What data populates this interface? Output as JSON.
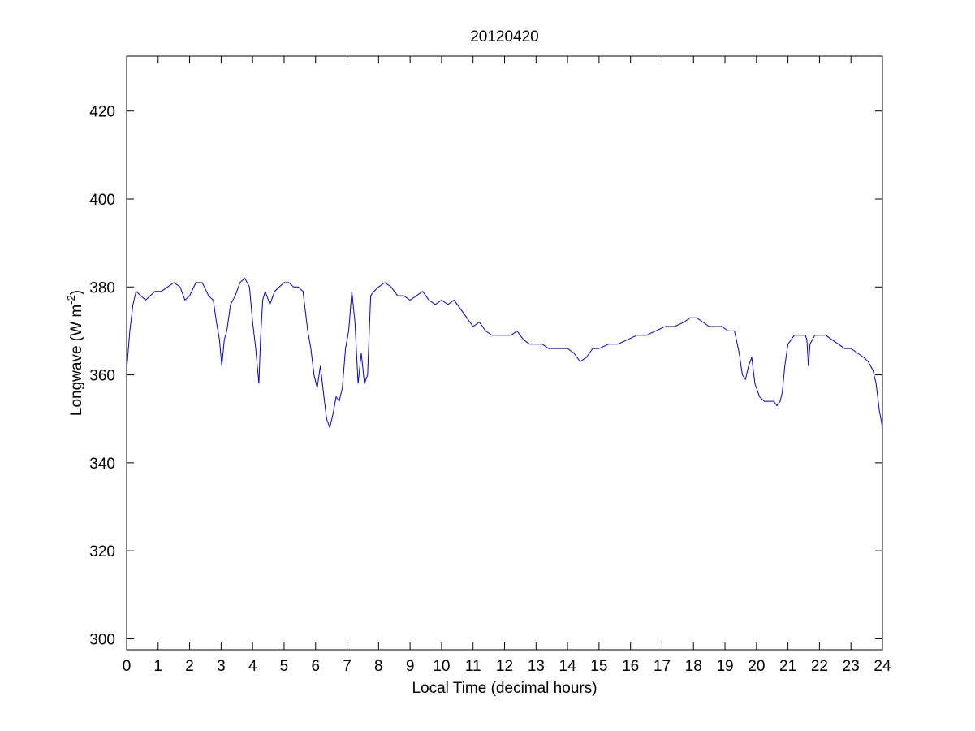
{
  "colors": {
    "series": "#0000cc",
    "axis": "#000000",
    "background": "#ffffff"
  },
  "chart_data": {
    "type": "line",
    "title": "20120420",
    "xlabel": "Local Time (decimal hours)",
    "ylabel": {
      "main": "Longwave (W m",
      "sup": "-2",
      "close": ")"
    },
    "xlim": [
      0,
      24
    ],
    "ylim": [
      297.5,
      432.5
    ],
    "x_ticks": [
      0,
      1,
      2,
      3,
      4,
      5,
      6,
      7,
      8,
      9,
      10,
      11,
      12,
      13,
      14,
      15,
      16,
      17,
      18,
      19,
      20,
      21,
      22,
      23,
      24
    ],
    "y_ticks": [
      300,
      320,
      340,
      360,
      380,
      400,
      420
    ],
    "grid": false,
    "legend": "none",
    "series": [
      {
        "x": [
          0.0,
          0.1,
          0.2,
          0.3,
          0.45,
          0.6,
          0.75,
          0.9,
          1.1,
          1.3,
          1.5,
          1.7,
          1.85,
          2.0,
          2.2,
          2.4,
          2.6,
          2.75,
          2.85,
          2.95,
          3.02,
          3.1,
          3.18,
          3.3,
          3.45,
          3.6,
          3.75,
          3.9,
          4.0,
          4.1,
          4.2,
          4.25,
          4.32,
          4.4,
          4.55,
          4.7,
          4.85,
          5.0,
          5.15,
          5.3,
          5.45,
          5.6,
          5.75,
          5.85,
          5.95,
          6.05,
          6.15,
          6.25,
          6.35,
          6.45,
          6.55,
          6.65,
          6.75,
          6.85,
          6.95,
          7.05,
          7.15,
          7.25,
          7.35,
          7.45,
          7.55,
          7.65,
          7.75,
          7.85,
          8.0,
          8.2,
          8.4,
          8.6,
          8.8,
          9.0,
          9.2,
          9.4,
          9.6,
          9.8,
          10.0,
          10.2,
          10.4,
          10.6,
          10.8,
          11.0,
          11.2,
          11.4,
          11.6,
          11.8,
          12.0,
          12.2,
          12.4,
          12.6,
          12.8,
          13.0,
          13.2,
          13.4,
          13.6,
          13.8,
          14.0,
          14.2,
          14.4,
          14.6,
          14.8,
          15.0,
          15.3,
          15.6,
          15.9,
          16.2,
          16.5,
          16.8,
          17.1,
          17.4,
          17.7,
          17.9,
          18.1,
          18.3,
          18.5,
          18.7,
          18.9,
          19.1,
          19.3,
          19.45,
          19.55,
          19.65,
          19.75,
          19.85,
          19.95,
          20.1,
          20.25,
          20.4,
          20.55,
          20.65,
          20.75,
          20.82,
          20.9,
          21.0,
          21.2,
          21.4,
          21.55,
          21.6,
          21.65,
          21.7,
          21.85,
          22.0,
          22.2,
          22.4,
          22.6,
          22.8,
          23.0,
          23.2,
          23.4,
          23.55,
          23.7,
          23.8,
          23.9,
          24.0
        ],
        "y": [
          361,
          370,
          376,
          379,
          378,
          377,
          378,
          379,
          379,
          380,
          381,
          380,
          377,
          378,
          381,
          381,
          378,
          377,
          372,
          368,
          362,
          368,
          370,
          376,
          378,
          381,
          382,
          380,
          372,
          366,
          358,
          368,
          377,
          379,
          376,
          379,
          380,
          381,
          381,
          380,
          380,
          379,
          370,
          366,
          360,
          357,
          362,
          356,
          350,
          348,
          351,
          355,
          354,
          357,
          366,
          370,
          379,
          372,
          358,
          365,
          358,
          360,
          378,
          379,
          380,
          381,
          380,
          378,
          378,
          377,
          378,
          379,
          377,
          376,
          377,
          376,
          377,
          375,
          373,
          371,
          372,
          370,
          369,
          369,
          369,
          369,
          370,
          368,
          367,
          367,
          367,
          366,
          366,
          366,
          366,
          365,
          363,
          364,
          366,
          366,
          367,
          367,
          368,
          369,
          369,
          370,
          371,
          371,
          372,
          373,
          373,
          372,
          371,
          371,
          371,
          370,
          370,
          365,
          360,
          359,
          362,
          364,
          358,
          355,
          354,
          354,
          354,
          353,
          354,
          356,
          362,
          367,
          369,
          369,
          369,
          368,
          362,
          367,
          369,
          369,
          369,
          368,
          367,
          366,
          366,
          365,
          364,
          363,
          361,
          358,
          352,
          348
        ]
      }
    ]
  }
}
